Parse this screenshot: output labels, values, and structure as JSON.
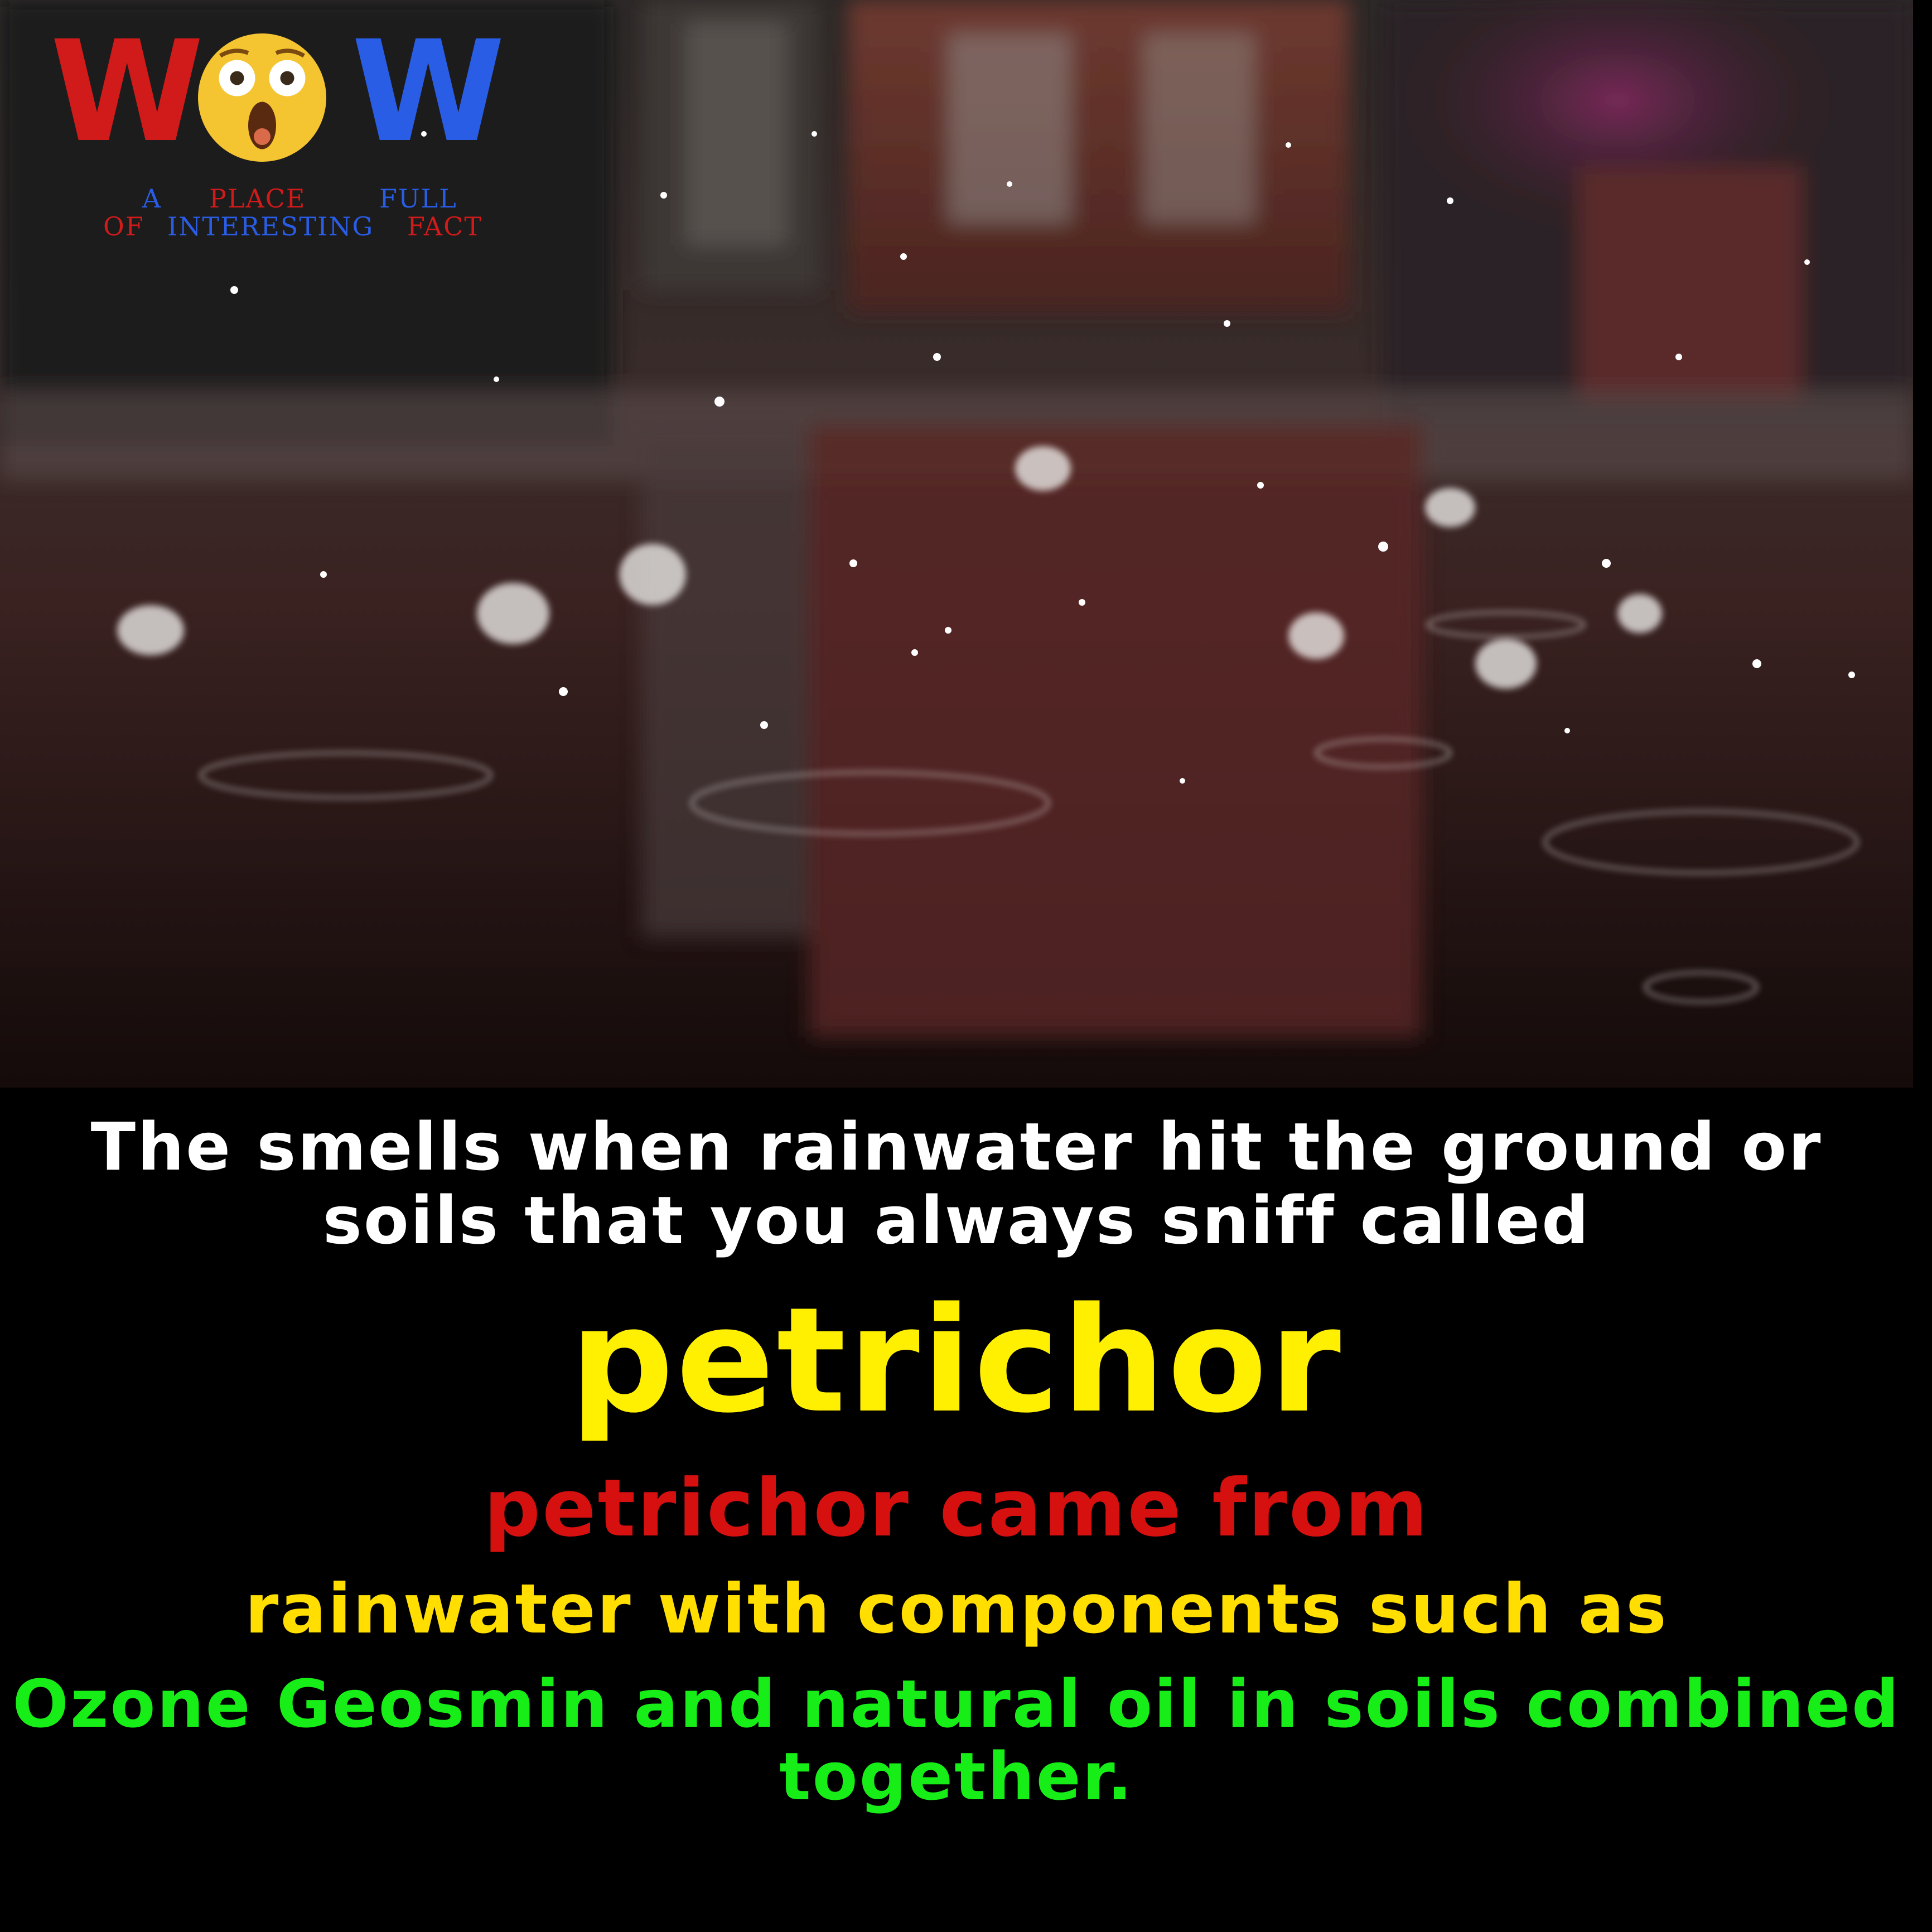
{
  "logo": {
    "w_left": "W",
    "w_right": "W",
    "tagline": {
      "a": "A",
      "place": "PLACE",
      "full": "FULL",
      "of": "OF",
      "interesting": "INTERESTING",
      "fact": "FACT"
    },
    "face_icon": "astonished-face-icon",
    "colors": {
      "red": "#d11a1a",
      "blue": "#2a5de6",
      "face": "#f5c431"
    }
  },
  "photo": {
    "subject": "rain-puddle-photo"
  },
  "text": {
    "intro": "The smells when rainwater hit the ground or soils that you always sniff called",
    "keyword": "petrichor",
    "origin": "petrichor came from",
    "detail": "rainwater with components such as",
    "components": "Ozone Geosmin and natural oil in soils combined together."
  },
  "colors": {
    "background": "#000000",
    "intro": "#ffffff",
    "keyword": "#ffef00",
    "origin": "#d60f0f",
    "detail": "#ffde00",
    "components": "#17ee17"
  }
}
